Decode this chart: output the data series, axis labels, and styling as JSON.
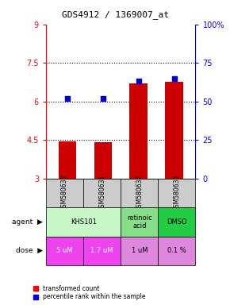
{
  "title": "GDS4912 / 1369007_at",
  "samples": [
    "GSM580630",
    "GSM580631",
    "GSM580632",
    "GSM580633"
  ],
  "bar_values": [
    4.45,
    4.4,
    6.7,
    6.75
  ],
  "percentile_values": [
    52,
    52,
    63,
    65
  ],
  "ylim_left": [
    3,
    9
  ],
  "ylim_right": [
    0,
    100
  ],
  "yticks_left": [
    3,
    4.5,
    6,
    7.5,
    9
  ],
  "ytick_labels_left": [
    "3",
    "4.5",
    "6",
    "7.5",
    "9"
  ],
  "yticks_right": [
    0,
    25,
    50,
    75,
    100
  ],
  "ytick_labels_right": [
    "0",
    "25",
    "50",
    "75",
    "100%"
  ],
  "hlines": [
    4.5,
    6.0,
    7.5
  ],
  "bar_color": "#cc0000",
  "dot_color": "#0000cc",
  "bar_width": 0.5,
  "agent_spans": [
    [
      0,
      2,
      "KHS101",
      "#c8f7c8"
    ],
    [
      2,
      3,
      "retinoic\nacid",
      "#88dd88"
    ],
    [
      3,
      4,
      "DMSO",
      "#22cc44"
    ]
  ],
  "dose_labels": [
    "5 uM",
    "1.7 uM",
    "1 uM",
    "0.1 %"
  ],
  "dose_colors": [
    "#ee44ee",
    "#ee44ee",
    "#dd88dd",
    "#dd88dd"
  ],
  "dose_text_colors": [
    "white",
    "white",
    "black",
    "black"
  ],
  "sample_bg_color": "#cccccc"
}
